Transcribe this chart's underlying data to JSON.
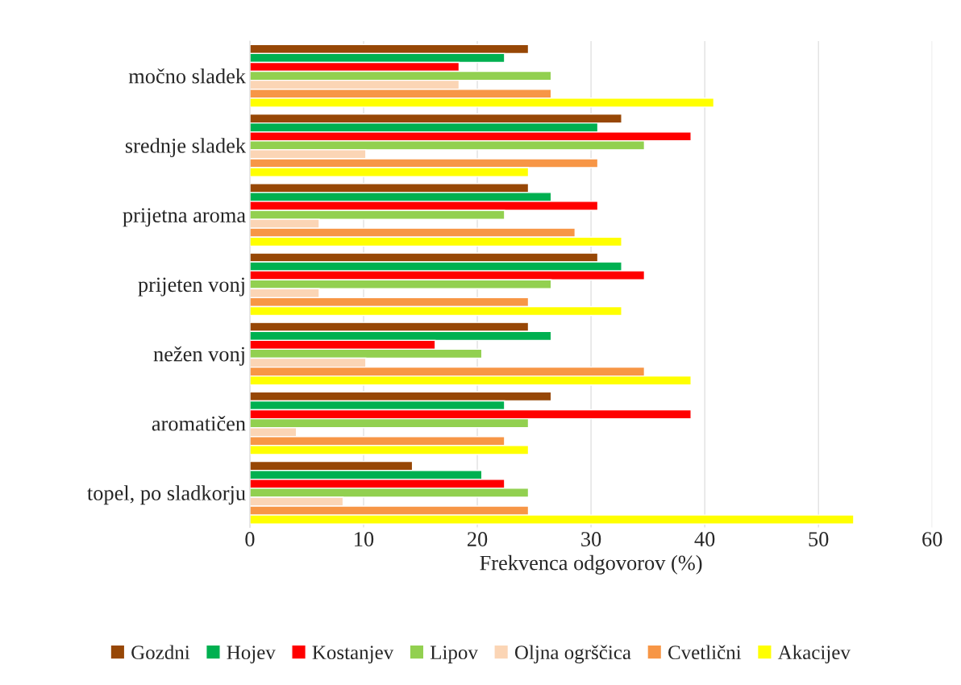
{
  "chart_data": {
    "type": "bar",
    "orientation": "horizontal",
    "xlabel": "Frekvenca odgovorov (%)",
    "categories": [
      "močno sladek",
      "srednje sladek",
      "prijetna aroma",
      "prijeten vonj",
      "nežen vonj",
      "aromatičen",
      "topel, po sladkorju"
    ],
    "series": [
      {
        "name": "Gozdni",
        "color": "#974706",
        "values": [
          24.5,
          32.7,
          24.5,
          30.6,
          24.5,
          26.5,
          14.3
        ]
      },
      {
        "name": "Hojev",
        "color": "#00b050",
        "values": [
          22.4,
          30.6,
          26.5,
          32.7,
          26.5,
          22.4,
          20.4
        ]
      },
      {
        "name": "Kostanjev",
        "color": "#ff0000",
        "values": [
          18.4,
          38.8,
          30.6,
          34.7,
          16.3,
          38.8,
          22.4
        ]
      },
      {
        "name": "Lipov",
        "color": "#92d050",
        "values": [
          26.5,
          34.7,
          22.4,
          26.5,
          20.4,
          24.5,
          24.5
        ]
      },
      {
        "name": "Oljna ogrščica",
        "color": "#fbd5b5",
        "values": [
          18.4,
          10.2,
          6.1,
          6.1,
          10.2,
          4.1,
          8.2
        ]
      },
      {
        "name": "Cvetlični",
        "color": "#f79646",
        "values": [
          26.5,
          30.6,
          28.6,
          24.5,
          34.7,
          22.4,
          24.5
        ]
      },
      {
        "name": "Akacijev",
        "color": "#ffff00",
        "values": [
          40.8,
          24.5,
          32.7,
          32.7,
          38.8,
          24.5,
          53.1
        ]
      }
    ],
    "xlim": [
      0,
      60
    ],
    "xticks": [
      0,
      10,
      20,
      30,
      40,
      50,
      60
    ],
    "grid": "x",
    "legend": "bottom"
  }
}
